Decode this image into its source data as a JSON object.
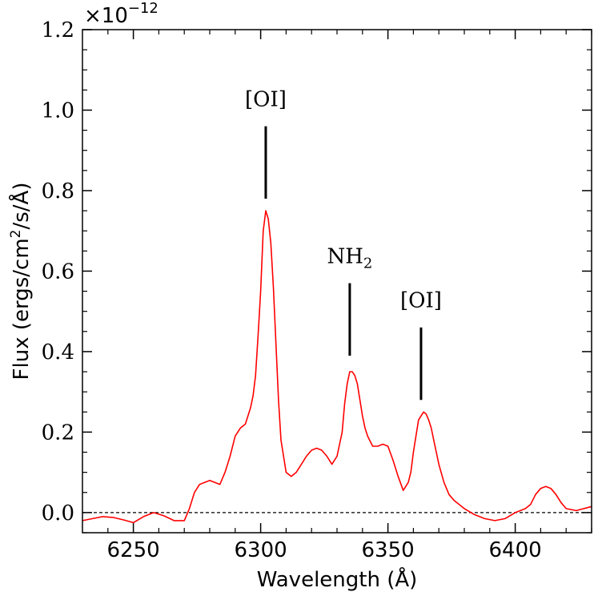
{
  "chart_data": {
    "type": "line",
    "xlabel": "Wavelength (Å)",
    "ylabel": "Flux (ergs/cm²/s/Å)",
    "ylabel_parts": {
      "pre": "Flux (ergs/cm",
      "sup": "2",
      "post": "/s/Å)"
    },
    "y_multiplier": {
      "base": "×10",
      "exp": "−12"
    },
    "xlim": [
      6230,
      6430
    ],
    "ylim": [
      -0.05,
      1.2
    ],
    "x_ticks": [
      6250,
      6300,
      6350,
      6400
    ],
    "x_tick_labels": [
      "6250",
      "6300",
      "6350",
      "6400"
    ],
    "y_ticks": [
      0.0,
      0.2,
      0.4,
      0.6,
      0.8,
      1.0,
      1.2
    ],
    "y_tick_labels": [
      "0.0",
      "0.2",
      "0.4",
      "0.6",
      "0.8",
      "1.0",
      "1.2"
    ],
    "line_color": "#ff0000",
    "zero_line": {
      "y": 0,
      "style": "dashed",
      "color": "#000000"
    },
    "series": [
      {
        "x": [
          6230,
          6234,
          6238,
          6242,
          6246,
          6250,
          6254,
          6258,
          6262,
          6266,
          6270,
          6272,
          6274,
          6276,
          6278,
          6280,
          6282,
          6284,
          6286,
          6288,
          6290,
          6292,
          6294,
          6296,
          6297,
          6298,
          6299,
          6300,
          6301,
          6302,
          6303,
          6304,
          6305,
          6306,
          6307,
          6308,
          6310,
          6312,
          6314,
          6316,
          6318,
          6320,
          6322,
          6324,
          6326,
          6328,
          6330,
          6331,
          6332,
          6333,
          6334,
          6335,
          6336,
          6337,
          6338,
          6339,
          6340,
          6341,
          6342,
          6344,
          6346,
          6348,
          6350,
          6352,
          6354,
          6356,
          6358,
          6359,
          6360,
          6361,
          6362,
          6363,
          6364,
          6365,
          6366,
          6367,
          6368,
          6370,
          6372,
          6374,
          6376,
          6378,
          6380,
          6384,
          6388,
          6392,
          6396,
          6400,
          6404,
          6406,
          6408,
          6410,
          6412,
          6414,
          6416,
          6418,
          6420,
          6424,
          6430
        ],
        "y": [
          -0.02,
          -0.015,
          -0.01,
          -0.012,
          -0.018,
          -0.025,
          -0.01,
          0.0,
          -0.008,
          -0.02,
          -0.02,
          0.01,
          0.05,
          0.07,
          0.075,
          0.08,
          0.075,
          0.07,
          0.1,
          0.14,
          0.19,
          0.21,
          0.22,
          0.26,
          0.29,
          0.34,
          0.44,
          0.55,
          0.7,
          0.75,
          0.73,
          0.67,
          0.56,
          0.42,
          0.28,
          0.18,
          0.1,
          0.09,
          0.1,
          0.12,
          0.14,
          0.155,
          0.16,
          0.155,
          0.14,
          0.12,
          0.14,
          0.17,
          0.2,
          0.27,
          0.32,
          0.35,
          0.35,
          0.34,
          0.32,
          0.28,
          0.24,
          0.21,
          0.19,
          0.165,
          0.165,
          0.17,
          0.165,
          0.13,
          0.09,
          0.055,
          0.075,
          0.1,
          0.15,
          0.19,
          0.23,
          0.24,
          0.25,
          0.245,
          0.23,
          0.21,
          0.18,
          0.12,
          0.075,
          0.045,
          0.03,
          0.02,
          0.01,
          -0.005,
          -0.015,
          -0.02,
          -0.015,
          0.0,
          0.01,
          0.02,
          0.045,
          0.06,
          0.065,
          0.06,
          0.045,
          0.025,
          0.01,
          0.005,
          0.015
        ]
      }
    ],
    "annotations": [
      {
        "label": "[OI]",
        "sub": "",
        "x": 6302,
        "line_y": [
          0.78,
          0.96
        ],
        "label_y": 1.01
      },
      {
        "label": "NH",
        "sub": "2",
        "x": 6335,
        "line_y": [
          0.39,
          0.57
        ],
        "label_y": 0.62
      },
      {
        "label": "[OI]",
        "sub": "",
        "x": 6363,
        "line_y": [
          0.28,
          0.46
        ],
        "label_y": 0.51
      }
    ]
  }
}
